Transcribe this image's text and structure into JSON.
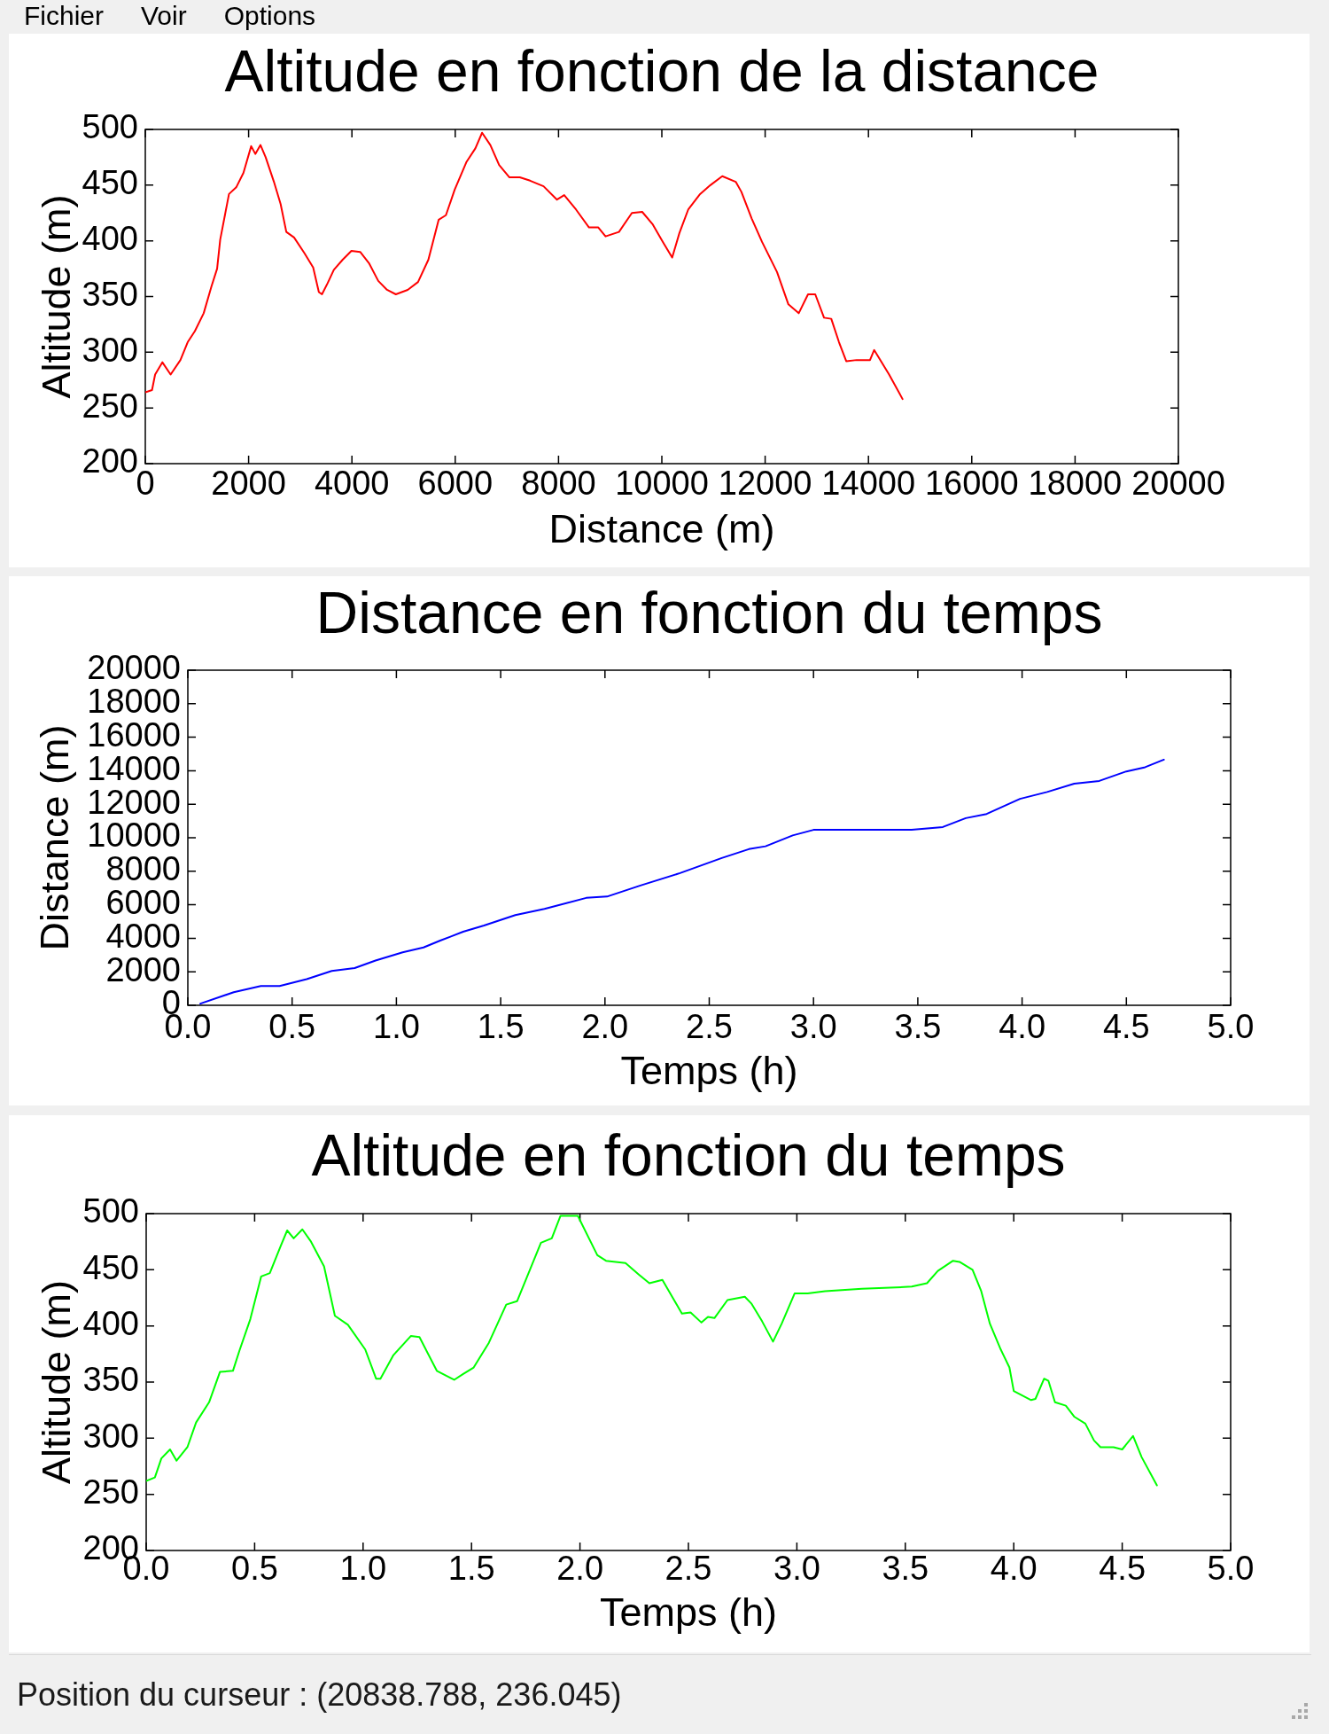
{
  "chart_data": [
    {
      "type": "other",
      "annotations": [
        "Fichier",
        "Voir",
        "Options"
      ]
    },
    {
      "type": "line",
      "title": "Altitude en fonction de la distance",
      "xlabel": "Distance (m)",
      "ylabel": "Altitude (m)",
      "color": "#ff0000",
      "x": [
        0,
        130,
        190,
        330,
        490,
        680,
        820,
        960,
        1130,
        1280,
        1390,
        1450,
        1620,
        1760,
        1900,
        2050,
        2130,
        2230,
        2330,
        2490,
        2620,
        2730,
        2880,
        3080,
        3250,
        3360,
        3420,
        3530,
        3650,
        3820,
        3990,
        4160,
        4330,
        4510,
        4680,
        4850,
        5080,
        5280,
        5480,
        5680,
        5820,
        5990,
        6220,
        6390,
        6520,
        6680,
        6850,
        7050,
        7250,
        7450,
        7710,
        7970,
        8110,
        8340,
        8590,
        8770,
        8910,
        9170,
        9420,
        9620,
        9820,
        10020,
        10200,
        10340,
        10510,
        10740,
        10940,
        11170,
        11430,
        11540,
        11740,
        11940,
        12230,
        12450,
        12650,
        12830,
        12970,
        13140,
        13280,
        13430,
        13570,
        13770,
        14030,
        14110,
        14400,
        14660
      ],
      "values": [
        264,
        266,
        280,
        291,
        280,
        293,
        309,
        319,
        335,
        359,
        375,
        401,
        442,
        448,
        461,
        485,
        478,
        486,
        475,
        453,
        433,
        408,
        403,
        389,
        376,
        354,
        352,
        362,
        374,
        383,
        391,
        390,
        380,
        364,
        356,
        352,
        356,
        363,
        383,
        419,
        423,
        446,
        471,
        483,
        497,
        486,
        468,
        457,
        457,
        454,
        449,
        437,
        441,
        428,
        412,
        412,
        404,
        408,
        425,
        426,
        415,
        399,
        385,
        407,
        428,
        442,
        450,
        458,
        453,
        444,
        420,
        399,
        372,
        343,
        335,
        352,
        352,
        331,
        330,
        309,
        292,
        293,
        293,
        302,
        280,
        258
      ],
      "xlim": [
        0,
        20000
      ],
      "xticks": [
        0,
        2000,
        4000,
        6000,
        8000,
        10000,
        12000,
        14000,
        16000,
        18000,
        20000
      ],
      "ylim": [
        200,
        500
      ],
      "yticks": [
        200,
        250,
        300,
        350,
        400,
        450,
        500
      ]
    },
    {
      "type": "line",
      "title": "Distance en fonction du temps",
      "xlabel": "Temps (h)",
      "ylabel": "Distance (m)",
      "color": "#0000ff",
      "x": [
        0.06,
        0.22,
        0.35,
        0.44,
        0.57,
        0.69,
        0.8,
        0.9,
        1.03,
        1.13,
        1.21,
        1.32,
        1.42,
        1.57,
        1.71,
        1.91,
        2.01,
        2.17,
        2.36,
        2.56,
        2.69,
        2.77,
        2.9,
        3,
        3.47,
        3.62,
        3.73,
        3.83,
        3.99,
        4.12,
        4.25,
        4.37,
        4.5,
        4.59,
        4.68
      ],
      "values": [
        100,
        780,
        1150,
        1150,
        1560,
        2050,
        2220,
        2670,
        3160,
        3450,
        3860,
        4390,
        4760,
        5380,
        5750,
        6410,
        6490,
        7150,
        7890,
        8790,
        9320,
        9490,
        10140,
        10470,
        10470,
        10640,
        11170,
        11420,
        12320,
        12730,
        13230,
        13390,
        13960,
        14210,
        14660
      ],
      "xlim": [
        0,
        5
      ],
      "xticks": [
        {
          "value": 0,
          "label": "0.0"
        },
        0.5,
        {
          "value": 1,
          "label": "1.0"
        },
        1.5,
        {
          "value": 2,
          "label": "2.0"
        },
        2.5,
        {
          "value": 3,
          "label": "3.0"
        },
        3.5,
        {
          "value": 4,
          "label": "4.0"
        },
        4.5,
        {
          "value": 5,
          "label": "5.0"
        }
      ],
      "ylim": [
        0,
        20000
      ],
      "yticks": [
        0,
        2000,
        4000,
        6000,
        8000,
        10000,
        12000,
        14000,
        16000,
        18000,
        20000
      ]
    },
    {
      "type": "line",
      "title": "Altitude en fonction du temps",
      "xlabel": "Temps (h)",
      "ylabel": "Altitude (m)",
      "color": "#00ff00",
      "x": [
        0,
        0.04,
        0.07,
        0.11,
        0.14,
        0.19,
        0.23,
        0.29,
        0.34,
        0.4,
        0.43,
        0.48,
        0.53,
        0.57,
        0.62,
        0.65,
        0.68,
        0.72,
        0.76,
        0.82,
        0.87,
        0.93,
        1.01,
        1.06,
        1.08,
        1.14,
        1.22,
        1.26,
        1.34,
        1.42,
        1.46,
        1.51,
        1.58,
        1.66,
        1.71,
        1.82,
        1.87,
        1.91,
        1.99,
        2.08,
        2.12,
        2.21,
        2.27,
        2.32,
        2.38,
        2.47,
        2.51,
        2.56,
        2.59,
        2.62,
        2.68,
        2.76,
        2.79,
        2.84,
        2.89,
        2.93,
        2.99,
        3.05,
        3.13,
        3.3,
        3.43,
        3.53,
        3.6,
        3.65,
        3.72,
        3.75,
        3.81,
        3.85,
        3.89,
        3.94,
        3.98,
        4,
        4.08,
        4.1,
        4.14,
        4.16,
        4.19,
        4.24,
        4.28,
        4.33,
        4.37,
        4.4,
        4.46,
        4.5,
        4.55,
        4.59,
        4.66
      ],
      "values": [
        262,
        265,
        282,
        290,
        280,
        292,
        314,
        332,
        359,
        360,
        378,
        406,
        444,
        447,
        471,
        485,
        478,
        486,
        475,
        453,
        409,
        401,
        379,
        353,
        353,
        374,
        391,
        390,
        360,
        352,
        357,
        363,
        385,
        419,
        422,
        474,
        478,
        498,
        498,
        463,
        458,
        456,
        446,
        438,
        441,
        411,
        412,
        403,
        408,
        407,
        423,
        426,
        420,
        404,
        386,
        402,
        429,
        429,
        431,
        433,
        434,
        435,
        438,
        449,
        458,
        457,
        450,
        431,
        402,
        379,
        363,
        342,
        334,
        335,
        353,
        351,
        332,
        329,
        319,
        313,
        298,
        292,
        292,
        290,
        302,
        283,
        258
      ],
      "xlim": [
        0,
        5
      ],
      "xticks": [
        {
          "value": 0,
          "label": "0.0"
        },
        0.5,
        {
          "value": 1,
          "label": "1.0"
        },
        1.5,
        {
          "value": 2,
          "label": "2.0"
        },
        2.5,
        {
          "value": 3,
          "label": "3.0"
        },
        3.5,
        {
          "value": 4,
          "label": "4.0"
        },
        4.5,
        {
          "value": 5,
          "label": "5.0"
        }
      ],
      "ylim": [
        200,
        500
      ],
      "yticks": [
        200,
        250,
        300,
        350,
        400,
        450,
        500
      ]
    },
    {
      "type": "other",
      "annotations": [
        "Position du curseur : (20838.788, 236.045)"
      ]
    }
  ]
}
